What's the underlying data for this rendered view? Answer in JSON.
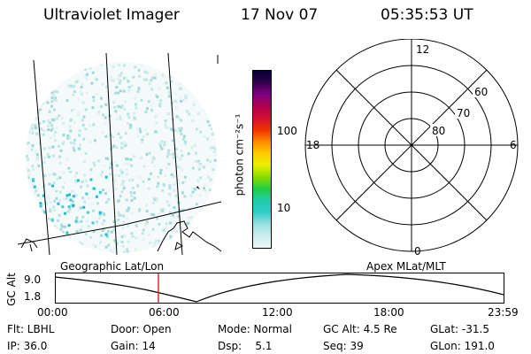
{
  "header": {
    "title": "Ultraviolet Imager",
    "date": "17 Nov 07",
    "time": "05:35:53 UT"
  },
  "colorbar": {
    "unit_label": "photon cm⁻²s⁻¹",
    "ticks": [
      "100",
      "10"
    ],
    "colors": [
      "#000033",
      "#33004d",
      "#800080",
      "#b0004f",
      "#d01030",
      "#ee3300",
      "#ff8800",
      "#ffcc00",
      "#e8ee00",
      "#88dd00",
      "#22cc44",
      "#22ccaa",
      "#33cccc",
      "#99e0e0",
      "#cceeee",
      "#eef6f6"
    ]
  },
  "polar_grid": {
    "ring_labels": [
      "60",
      "70",
      "80"
    ],
    "mlt_labels": [
      "12",
      "18",
      "6",
      "0"
    ]
  },
  "panel_labels": {
    "left": "Geographic Lat/Lon",
    "right": "Apex MLat/MLT"
  },
  "altitude_plot": {
    "ylabel": "GC Alt",
    "yticks": [
      "9.0",
      "1.8"
    ],
    "xticks": [
      "00:00",
      "06:00",
      "12:00",
      "18:00",
      "23:59"
    ],
    "marker_color": "#d02020"
  },
  "footer": {
    "col1": [
      "Flt: LBHL",
      "IP: 36.0"
    ],
    "col2": [
      "Door: Open",
      "Gain: 14"
    ],
    "col3": [
      "Mode: Normal",
      "Dsp:    5.1"
    ],
    "col4": [
      "GC Alt: 4.5 Re",
      "Seq: 39"
    ],
    "col5": [
      "GLat: -31.5",
      "GLon: 191.0"
    ]
  }
}
